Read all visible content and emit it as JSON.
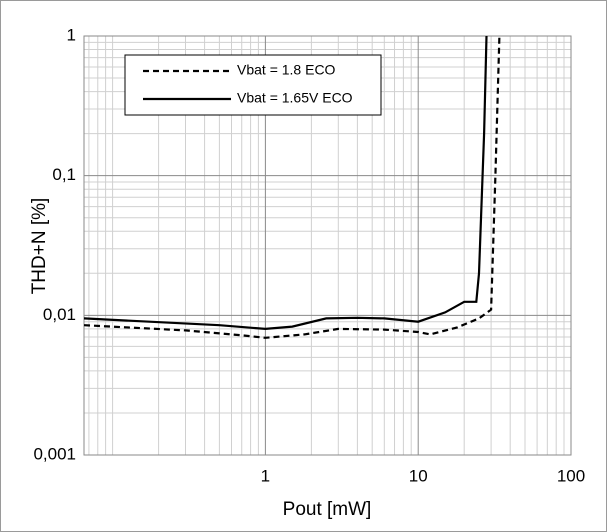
{
  "chart_data": {
    "type": "line",
    "x_label": "Pout [mW]",
    "y_label": "THD+N [%]",
    "log_x": true,
    "log_y": true,
    "grid": true,
    "xlim": [
      0.065,
      100
    ],
    "ylim": [
      0.001,
      1
    ],
    "xticks": [
      1,
      10,
      100
    ],
    "yticks": [
      {
        "value": 0.001,
        "label": "0,001"
      },
      {
        "value": 0.01,
        "label": "0,01"
      },
      {
        "value": 0.1,
        "label": "0,1"
      },
      1
    ],
    "xminorticks": [
      0.07,
      0.08,
      0.09,
      0.1,
      0.2,
      0.3,
      0.4,
      0.5,
      0.6,
      0.7,
      0.8,
      0.9,
      2,
      3,
      4,
      5,
      6,
      7,
      8,
      9,
      20,
      30,
      40,
      50,
      60,
      70,
      80,
      90
    ],
    "yminorticks": [
      0.002,
      0.003,
      0.004,
      0.005,
      0.006,
      0.007,
      0.008,
      0.009,
      0.02,
      0.03,
      0.04,
      0.05,
      0.06,
      0.07,
      0.08,
      0.09,
      0.2,
      0.3,
      0.4,
      0.5,
      0.6,
      0.7,
      0.8,
      0.9
    ],
    "legend": "upper-left",
    "series": [
      {
        "name": "Vbat = 1.8 ECO",
        "color": "#000000",
        "dash": true,
        "x": [
          0.065,
          0.3,
          0.7,
          1,
          1.8,
          3,
          6,
          10,
          12,
          18,
          25,
          30,
          32,
          34
        ],
        "values": [
          0.0085,
          0.0078,
          0.0072,
          0.0069,
          0.0073,
          0.008,
          0.0079,
          0.0076,
          0.0073,
          0.0082,
          0.0095,
          0.011,
          0.1,
          1
        ]
      },
      {
        "name": "Vbat = 1.65V ECO",
        "color": "#000000",
        "dash": false,
        "x": [
          0.065,
          0.5,
          1,
          1.5,
          2.5,
          4,
          6,
          10,
          15,
          20,
          24,
          25,
          27,
          28
        ],
        "values": [
          0.0095,
          0.0085,
          0.008,
          0.0083,
          0.0095,
          0.0096,
          0.0095,
          0.009,
          0.0105,
          0.0125,
          0.0125,
          0.02,
          0.2,
          1
        ]
      }
    ]
  }
}
